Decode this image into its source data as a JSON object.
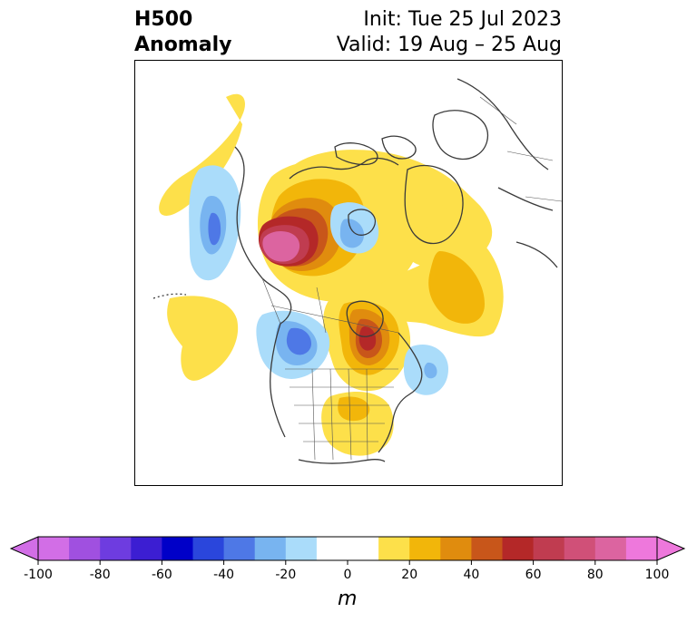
{
  "title": {
    "left_line1": "H500",
    "left_line2": "Anomaly",
    "right_line1": "Init: Tue 25 Jul 2023",
    "right_line2": "Valid: 19 Aug – 25 Aug"
  },
  "colorbar": {
    "unit": "m",
    "tick_labels": [
      "-100",
      "-80",
      "-60",
      "-40",
      "-20",
      "0",
      "20",
      "40",
      "60",
      "80",
      "100"
    ],
    "levels": [
      -100,
      -90,
      -80,
      -70,
      -60,
      -50,
      -40,
      -30,
      -20,
      -10,
      10,
      20,
      30,
      40,
      50,
      60,
      70,
      80,
      90,
      100
    ],
    "colors": [
      "#d26ee6",
      "#a050e0",
      "#6e3ce0",
      "#3c1ed2",
      "#0000c8",
      "#2a46dc",
      "#4e78e6",
      "#78b4f0",
      "#aadcfa",
      "#ffffff",
      "#fde04a",
      "#f2b60a",
      "#e08c0e",
      "#c8561a",
      "#b42828",
      "#c03c50",
      "#d05078",
      "#dc64a0",
      "#ee78dc"
    ],
    "extend_low_color": "#d26ee6",
    "extend_high_color": "#ee78dc"
  },
  "map": {
    "projection": "polar stereographic (North America / Arctic)",
    "coastline_color": "#3a3a3a"
  }
}
